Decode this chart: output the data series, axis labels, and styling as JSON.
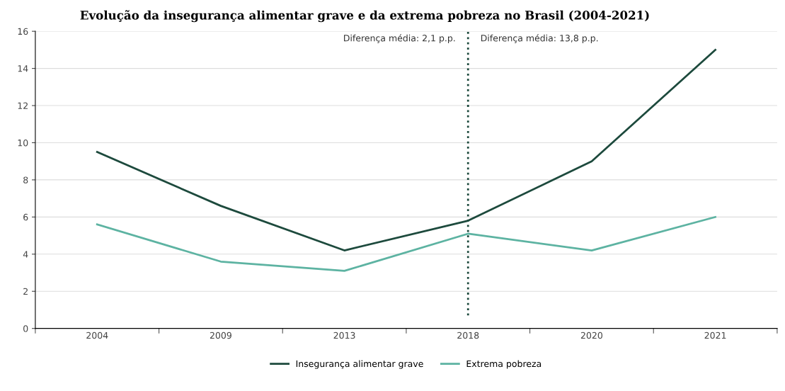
{
  "chart_data": {
    "type": "line",
    "title": "Evolução da insegurança alimentar grave e da extrema pobreza no Brasil (2004-2021)",
    "categories": [
      "2004",
      "2009",
      "2013",
      "2018",
      "2020",
      "2021"
    ],
    "series": [
      {
        "name": "Insegurança alimentar grave",
        "color": "#1d4a3d",
        "values": [
          9.5,
          6.6,
          4.2,
          5.8,
          9.0,
          15.0
        ]
      },
      {
        "name": "Extrema pobreza",
        "color": "#5db3a2",
        "values": [
          5.6,
          3.6,
          3.1,
          5.1,
          4.2,
          6.0
        ]
      }
    ],
    "ylim": [
      0,
      16
    ],
    "yticks": [
      0,
      2,
      4,
      6,
      8,
      10,
      12,
      14,
      16
    ],
    "ref_lines": [
      {
        "axis": "x",
        "value": "2018",
        "color": "#1d4a3d",
        "line_style": "dotted"
      }
    ],
    "annotations": [
      "Diferença média: 2,1 p.p.",
      "Diferença média: 13,8 p.p."
    ],
    "grid": "y",
    "legend": "bottom",
    "marker": "none",
    "line_style": "solid"
  }
}
